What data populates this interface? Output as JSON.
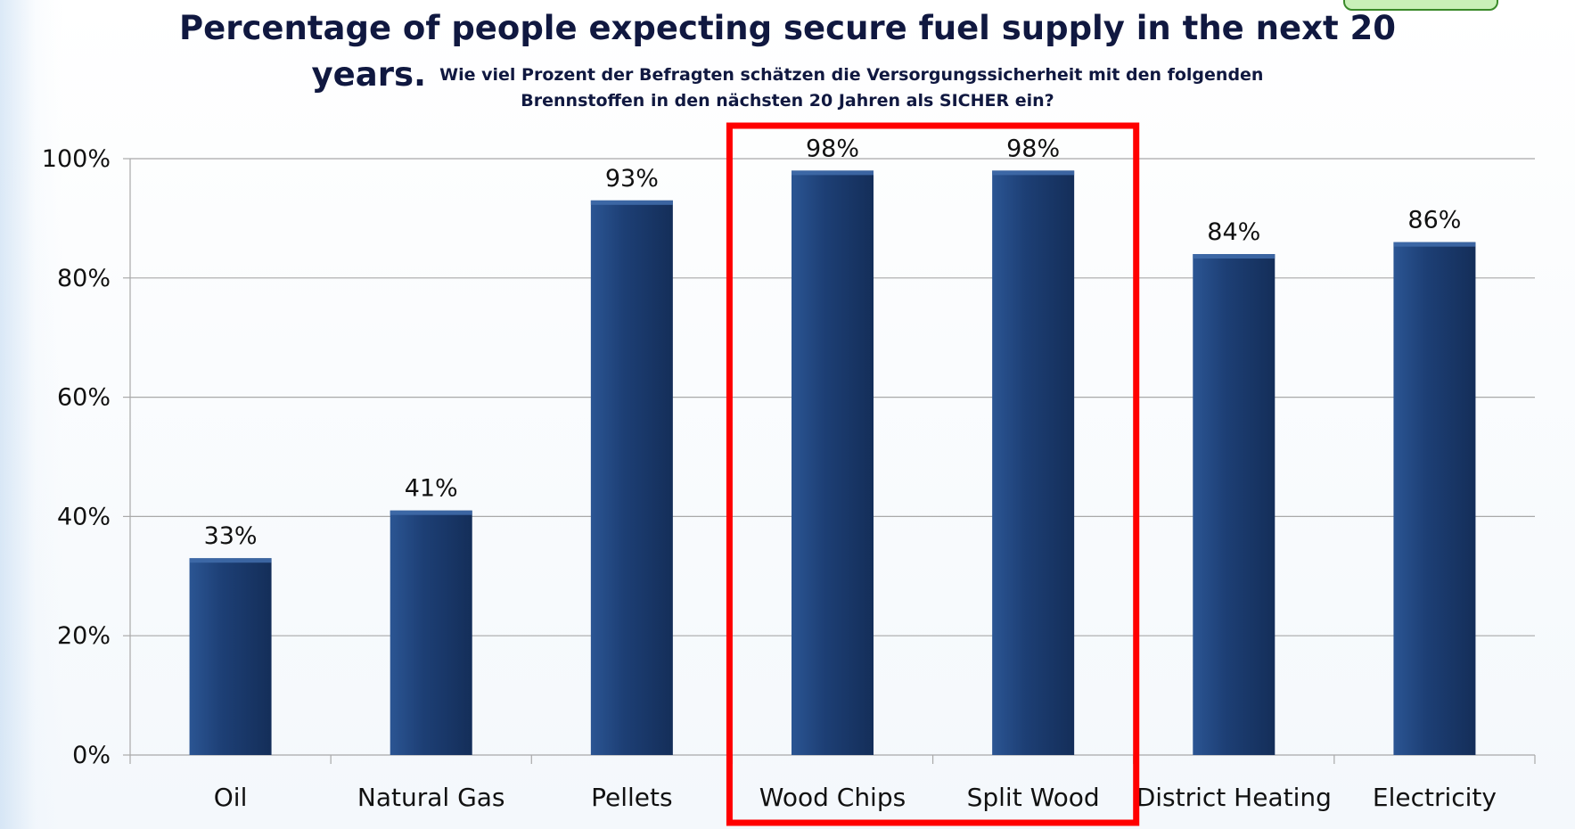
{
  "header": {
    "title_line1": "Percentage of people expecting secure fuel supply in the next 20",
    "title_line2": "years.",
    "subtitle_part1": "Wie viel Prozent der Befragten schätzen die Versorgungssicherheit mit den folgenden",
    "subtitle_part2": "Brennstoffen in den nächsten 20 Jahren als SICHER ein?"
  },
  "colors": {
    "bar": "#1d3f75",
    "highlight_box": "#ff0000",
    "gridline": "#a9a9a9",
    "text": "#101840"
  },
  "chart_data": {
    "type": "bar",
    "title": "Percentage of people expecting secure fuel supply in the next 20 years.",
    "subtitle": "Wie viel Prozent der Befragten schätzen die Versorgungssicherheit mit den folgenden Brennstoffen in den nächsten 20 Jahren als SICHER ein?",
    "categories": [
      "Oil",
      "Natural Gas",
      "Pellets",
      "Wood Chips",
      "Split Wood",
      "District Heating",
      "Electricity"
    ],
    "values": [
      33,
      41,
      93,
      98,
      98,
      84,
      86
    ],
    "data_labels": [
      "33%",
      "41%",
      "93%",
      "98%",
      "98%",
      "84%",
      "86%"
    ],
    "yticks": [
      "0%",
      "20%",
      "40%",
      "60%",
      "80%",
      "100%"
    ],
    "ylim": [
      0,
      100
    ],
    "xlabel": "",
    "ylabel": "",
    "grid": true,
    "legend": "none",
    "highlighted_categories": [
      "Wood Chips",
      "Split Wood"
    ]
  }
}
